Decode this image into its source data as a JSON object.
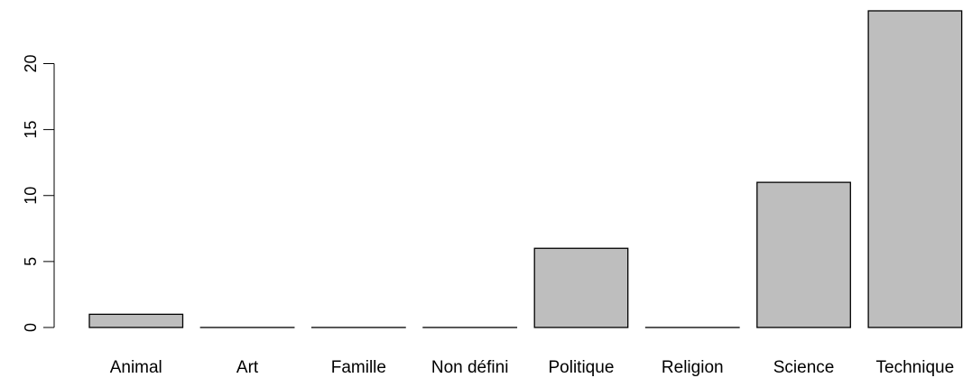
{
  "chart_data": {
    "type": "bar",
    "categories": [
      "Animal",
      "Art",
      "Famille",
      "Non défini",
      "Politique",
      "Religion",
      "Science",
      "Technique"
    ],
    "values": [
      1,
      0,
      0,
      0,
      6,
      0,
      11,
      24
    ],
    "yticks": [
      "0",
      "5",
      "10",
      "15",
      "20"
    ],
    "ylim": [
      0,
      24
    ],
    "grid": false,
    "legend": "none",
    "bar_color": "#bebebe",
    "title": "",
    "xlabel": "",
    "ylabel": ""
  }
}
